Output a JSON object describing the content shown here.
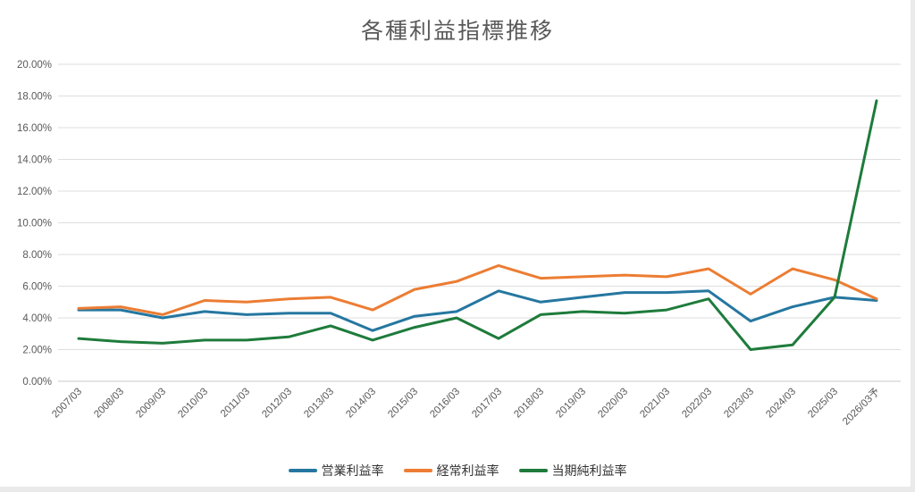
{
  "title": "各種利益指標推移",
  "colors": {
    "operating_margin": "#2577A0",
    "ordinary_margin": "#EC7D33",
    "net_margin": "#1E7B3B",
    "gridline": "#dedede",
    "axis_line": "#c9c9c9",
    "tick_text": "#595959",
    "title_text": "#595959"
  },
  "chart_data": {
    "type": "line",
    "title": "各種利益指標推移",
    "xlabel": "",
    "ylabel": "",
    "ylim": [
      0,
      20
    ],
    "ytick_step": 2,
    "ytick_labels": [
      "0.00%",
      "2.00%",
      "4.00%",
      "6.00%",
      "8.00%",
      "10.00%",
      "12.00%",
      "14.00%",
      "16.00%",
      "18.00%",
      "20.00%"
    ],
    "grid": true,
    "legend_position": "bottom",
    "categories": [
      "2007/03",
      "2008/03",
      "2009/03",
      "2010/03",
      "2011/03",
      "2012/03",
      "2013/03",
      "2014/03",
      "2015/03",
      "2016/03",
      "2017/03",
      "2018/03",
      "2019/03",
      "2020/03",
      "2021/03",
      "2022/03",
      "2023/03",
      "2024/03",
      "2025/03",
      "2026/03予"
    ],
    "series": [
      {
        "key": "operating-margin",
        "name": "営業利益率",
        "color": "#2577A0",
        "values": [
          4.5,
          4.5,
          4.0,
          4.4,
          4.2,
          4.3,
          4.3,
          3.2,
          4.1,
          4.4,
          5.7,
          5.0,
          5.3,
          5.6,
          5.6,
          5.7,
          3.8,
          4.7,
          5.3,
          5.1
        ]
      },
      {
        "key": "ordinary-margin",
        "name": "経常利益率",
        "color": "#EC7D33",
        "values": [
          4.6,
          4.7,
          4.2,
          5.1,
          5.0,
          5.2,
          5.3,
          4.5,
          5.8,
          6.3,
          7.3,
          6.5,
          6.6,
          6.7,
          6.6,
          7.1,
          5.5,
          7.1,
          6.4,
          5.2
        ]
      },
      {
        "key": "net-margin",
        "name": "当期純利益率",
        "color": "#1E7B3B",
        "values": [
          2.7,
          2.5,
          2.4,
          2.6,
          2.6,
          2.8,
          3.5,
          2.6,
          3.4,
          4.0,
          2.7,
          4.2,
          4.4,
          4.3,
          4.5,
          5.2,
          2.0,
          2.3,
          5.3,
          17.7
        ]
      }
    ]
  }
}
